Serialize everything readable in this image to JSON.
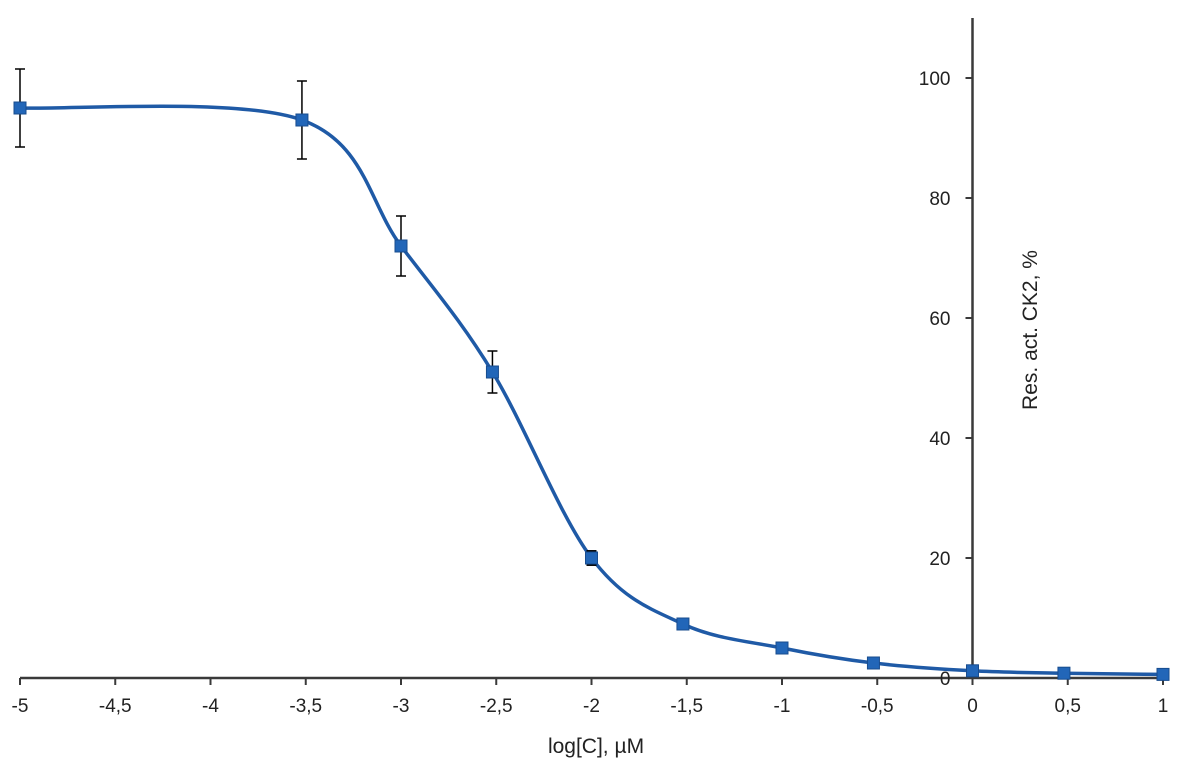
{
  "chart_data": {
    "type": "line",
    "title": "",
    "xlabel": "log[C], µM",
    "ylabel": "Res. act. CK2, %",
    "xlim": [
      -5,
      1
    ],
    "ylim": [
      0,
      110
    ],
    "grid": false,
    "legend": "none",
    "x_ticks": [
      -5,
      -4.5,
      -4,
      -3.5,
      -3,
      -2.5,
      -2,
      -1.5,
      -1,
      -0.5,
      0,
      0.5,
      1
    ],
    "x_tick_labels": [
      "-5",
      "-4,5",
      "-4",
      "-3,5",
      "-3",
      "-2,5",
      "-2",
      "-1,5",
      "-1",
      "-0,5",
      "0",
      "0,5",
      "1"
    ],
    "y_ticks": [
      0,
      20,
      40,
      60,
      80,
      100
    ],
    "y_tick_labels": [
      "0",
      "20",
      "40",
      "60",
      "80",
      "100"
    ],
    "series_color": "#1f5aa6",
    "marker_color": "#2266b8",
    "error_bar_color": "#000000",
    "series": [
      {
        "name": "Res. act. CK2",
        "x": [
          -5,
          -3.52,
          -3,
          -2.52,
          -2,
          -1.52,
          -1,
          -0.52,
          0,
          0.48,
          1
        ],
        "y": [
          95,
          93,
          72,
          51,
          20,
          9,
          5,
          2.5,
          1.2,
          0.8,
          0.6
        ],
        "error": [
          6.5,
          6.5,
          5,
          3.5,
          1.2,
          null,
          null,
          null,
          null,
          null,
          null
        ]
      }
    ]
  }
}
